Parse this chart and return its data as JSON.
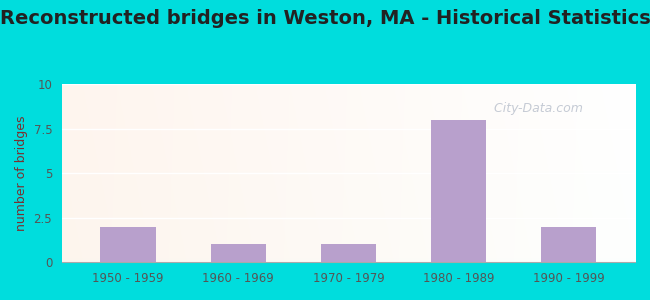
{
  "title": "Reconstructed bridges in Weston, MA - Historical Statistics",
  "categories": [
    "1950 - 1959",
    "1960 - 1969",
    "1970 - 1979",
    "1980 - 1989",
    "1990 - 1999"
  ],
  "values": [
    2,
    1,
    1,
    8,
    2
  ],
  "bar_color": "#b8a0cc",
  "ylabel": "number of bridges",
  "ylim": [
    0,
    10
  ],
  "yticks": [
    0,
    2.5,
    5,
    7.5,
    10
  ],
  "ytick_labels": [
    "0",
    "2.5",
    "5",
    "7.5",
    "10"
  ],
  "title_fontsize": 14,
  "title_color": "#222222",
  "label_color": "#7a3030",
  "tick_color": "#555555",
  "bg_color_outer": "#00dddd",
  "watermark_text": "  City-Data.com",
  "watermark_color": "#a0aabb",
  "watermark_alpha": 0.6,
  "grid_color": "#ccddcc",
  "bar_width": 0.5
}
